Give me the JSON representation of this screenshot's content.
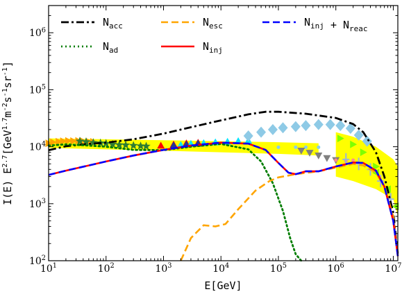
{
  "chart_data": {
    "type": "line",
    "title": "",
    "xlabel": "E[GeV]",
    "ylabel": "I(E) E^{2.7}[GeV^{1.7}m^{-2}s^{-1}sr^{-1}]",
    "xscale": "log",
    "yscale": "log",
    "xlim": [
      10,
      12000000
    ],
    "ylim": [
      100,
      3000000
    ],
    "x_ticks": [
      "10^1",
      "10^2",
      "10^3",
      "10^4",
      "10^5",
      "10^6",
      "10^7"
    ],
    "y_ticks": [
      "10^2",
      "10^3",
      "10^4",
      "10^5",
      "10^6"
    ],
    "grid": false,
    "legend_position": "top",
    "series": [
      {
        "name": "N_acc",
        "style": "dashdot",
        "color": "#000000",
        "x": [
          10,
          20,
          50,
          100,
          300,
          1000,
          3000,
          10000,
          30000,
          60000,
          100000,
          300000,
          1000000,
          2000000,
          3000000,
          5000000,
          7000000,
          10000000,
          12000000
        ],
        "y": [
          8700,
          10200,
          11200,
          11800,
          13500,
          17000,
          22000,
          29000,
          37000,
          41000,
          41000,
          38000,
          32000,
          25000,
          18000,
          8000,
          3000,
          700,
          130
        ]
      },
      {
        "name": "N_ad",
        "style": "dotted",
        "color": "#007d00",
        "x": [
          10,
          20,
          50,
          100,
          300,
          1000,
          3000,
          10000,
          30000,
          50000,
          80000,
          120000,
          160000,
          200000,
          250000
        ],
        "y": [
          10500,
          11000,
          10500,
          10000,
          8800,
          8700,
          10000,
          11200,
          9000,
          5500,
          2300,
          750,
          250,
          130,
          100
        ]
      },
      {
        "name": "N_esc",
        "style": "dashed",
        "color": "#ffa500",
        "x": [
          2000,
          3000,
          5000,
          8000,
          12000,
          20000,
          40000,
          70000,
          100000,
          200000,
          500000,
          1000000,
          2000000,
          3000000,
          5000000,
          7000000,
          10000000,
          12000000
        ],
        "y": [
          100,
          250,
          420,
          400,
          440,
          800,
          1700,
          2500,
          2900,
          3300,
          3700,
          4300,
          5000,
          4700,
          3500,
          2000,
          600,
          130
        ]
      },
      {
        "name": "N_inj",
        "style": "solid",
        "color": "#ff0000",
        "x": [
          10,
          20,
          50,
          100,
          300,
          1000,
          3000,
          10000,
          30000,
          60000,
          100000,
          150000,
          200000,
          300000,
          500000,
          1000000,
          2000000,
          3000000,
          5000000,
          7000000,
          10000000,
          12000000
        ],
        "y": [
          3200,
          3800,
          4700,
          5500,
          7000,
          8800,
          10500,
          11800,
          11300,
          8800,
          5200,
          3500,
          3300,
          3700,
          3700,
          4500,
          5300,
          5200,
          3800,
          2000,
          500,
          120
        ]
      },
      {
        "name": "N_inj + N_reac",
        "style": "dashed",
        "color": "#0000ff",
        "x": [
          10,
          20,
          50,
          100,
          300,
          1000,
          3000,
          10000,
          30000,
          60000,
          100000,
          150000,
          200000,
          300000,
          500000,
          1000000,
          2000000,
          3000000,
          5000000,
          7000000,
          10000000,
          12000000
        ],
        "y": [
          3200,
          3800,
          4700,
          5500,
          7000,
          8800,
          10500,
          11800,
          11300,
          8800,
          5200,
          3500,
          3300,
          3700,
          3700,
          4500,
          5300,
          5200,
          3800,
          2000,
          500,
          120
        ]
      }
    ],
    "bands": [
      {
        "color": "#ffff00",
        "x": [
          10,
          100,
          1000,
          10000,
          100000,
          500000,
          500000,
          100000,
          10000,
          1000,
          100,
          10
        ],
        "y": [
          14000,
          13500,
          13000,
          12500,
          12000,
          11500,
          7000,
          7500,
          8000,
          8500,
          9000,
          9500
        ]
      },
      {
        "color": "#ffff00",
        "x": [
          1000000,
          2000000,
          5000000,
          10000000,
          12000000,
          12000000,
          10000000,
          5000000,
          2000000,
          1000000
        ],
        "y": [
          18000,
          15000,
          10000,
          6000,
          4500,
          600,
          1200,
          1800,
          2500,
          3000
        ]
      }
    ],
    "data_points": [
      {
        "marker": "triangle-right",
        "color": "#ffa500",
        "x": [
          10,
          12,
          15,
          18,
          22,
          27,
          33,
          40,
          50,
          60
        ],
        "y": [
          11500,
          12000,
          12300,
          12500,
          12700,
          12600,
          12700,
          12500,
          12300,
          12200
        ]
      },
      {
        "marker": "star",
        "color": "#2e7d32",
        "x": [
          35,
          45,
          60,
          80,
          100,
          130,
          170,
          220,
          300,
          400,
          500
        ],
        "y": [
          12500,
          12200,
          11800,
          11600,
          11400,
          11000,
          10800,
          10700,
          10500,
          10300,
          10200
        ]
      },
      {
        "marker": "triangle-up",
        "color": "#ff0000",
        "x": [
          900,
          1500,
          2500,
          4000
        ],
        "y": [
          10500,
          11000,
          11500,
          11800
        ]
      },
      {
        "marker": "triangle-up",
        "color": "#00e5ff",
        "x": [
          2000,
          3000,
          5000,
          8000,
          13000,
          20000,
          30000
        ],
        "y": [
          10800,
          11300,
          11600,
          12000,
          12300,
          12600,
          12800
        ]
      },
      {
        "marker": "triangle-up",
        "color": "#1f3a93",
        "x": [
          1500,
          2500,
          4000
        ],
        "y": [
          10600,
          11000,
          11400
        ]
      },
      {
        "marker": "diamond",
        "color": "#8ecae6",
        "x": [
          30000,
          50000,
          80000,
          120000,
          200000,
          300000,
          500000,
          800000,
          1200000,
          1800000,
          2500000,
          3500000
        ],
        "y": [
          15500,
          18000,
          20000,
          21500,
          22500,
          23500,
          24500,
          24500,
          23500,
          21000,
          16000,
          12500
        ]
      },
      {
        "marker": "dot",
        "color": "#87ceeb",
        "x": [
          100000,
          200000,
          300000,
          500000
        ],
        "y": [
          9800,
          9800,
          9800,
          9800
        ]
      },
      {
        "marker": "triangle-down",
        "color": "#808080",
        "x": [
          250000,
          350000,
          500000,
          700000,
          1000000
        ],
        "y": [
          8500,
          7800,
          7000,
          6300,
          5800
        ]
      },
      {
        "marker": "dot",
        "color": "#ff8c8c",
        "x": [
          1000000,
          1500000,
          2000000
        ],
        "y": [
          5800,
          5600,
          5800
        ]
      },
      {
        "marker": "triangle-right",
        "color": "#7fff00",
        "x": [
          1200000,
          2000000,
          3000000,
          5000000
        ],
        "y": [
          14000,
          11000,
          8000,
          4500
        ]
      },
      {
        "marker": "plus",
        "color": "#9bb5d6",
        "x": [
          1500000,
          2500000,
          4000000,
          6000000,
          9000000
        ],
        "y": [
          6000,
          5000,
          4000,
          2500,
          1200
        ]
      },
      {
        "marker": "triangle-left",
        "color": "#7cfc00",
        "x": [
          5000000,
          8000000,
          11000000
        ],
        "y": [
          3500,
          1800,
          900
        ]
      }
    ]
  }
}
